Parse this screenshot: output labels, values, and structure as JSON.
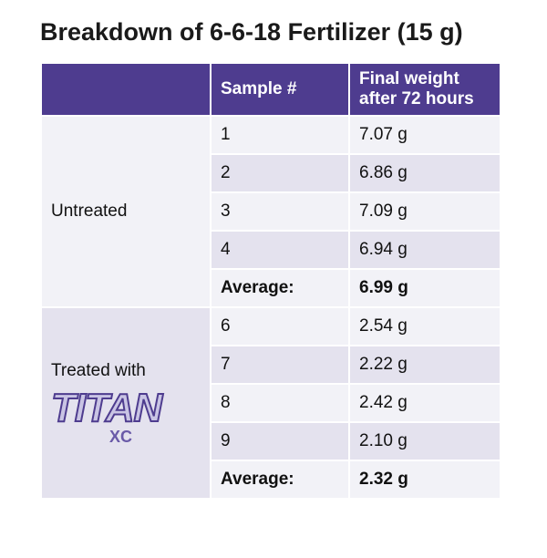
{
  "title": "Breakdown of 6-6-18 Fertilizer (15 g)",
  "table": {
    "header": [
      "Sample #",
      "Final weight after 72 hours"
    ],
    "groups": [
      {
        "label": "Untreated",
        "rows": [
          [
            "1",
            "7.07 g"
          ],
          [
            "2",
            "6.86 g"
          ],
          [
            "3",
            "7.09 g"
          ],
          [
            "4",
            "6.94 g"
          ]
        ],
        "average": {
          "label": "Average:",
          "value": "6.99 g"
        }
      },
      {
        "label": "Treated with",
        "logo": {
          "name": "TITAN",
          "mark": "XC"
        },
        "rows": [
          [
            "6",
            "2.54 g"
          ],
          [
            "7",
            "2.22 g"
          ],
          [
            "8",
            "2.42 g"
          ],
          [
            "9",
            "2.10 g"
          ]
        ],
        "average": {
          "label": "Average:",
          "value": "2.32 g"
        }
      }
    ]
  }
}
